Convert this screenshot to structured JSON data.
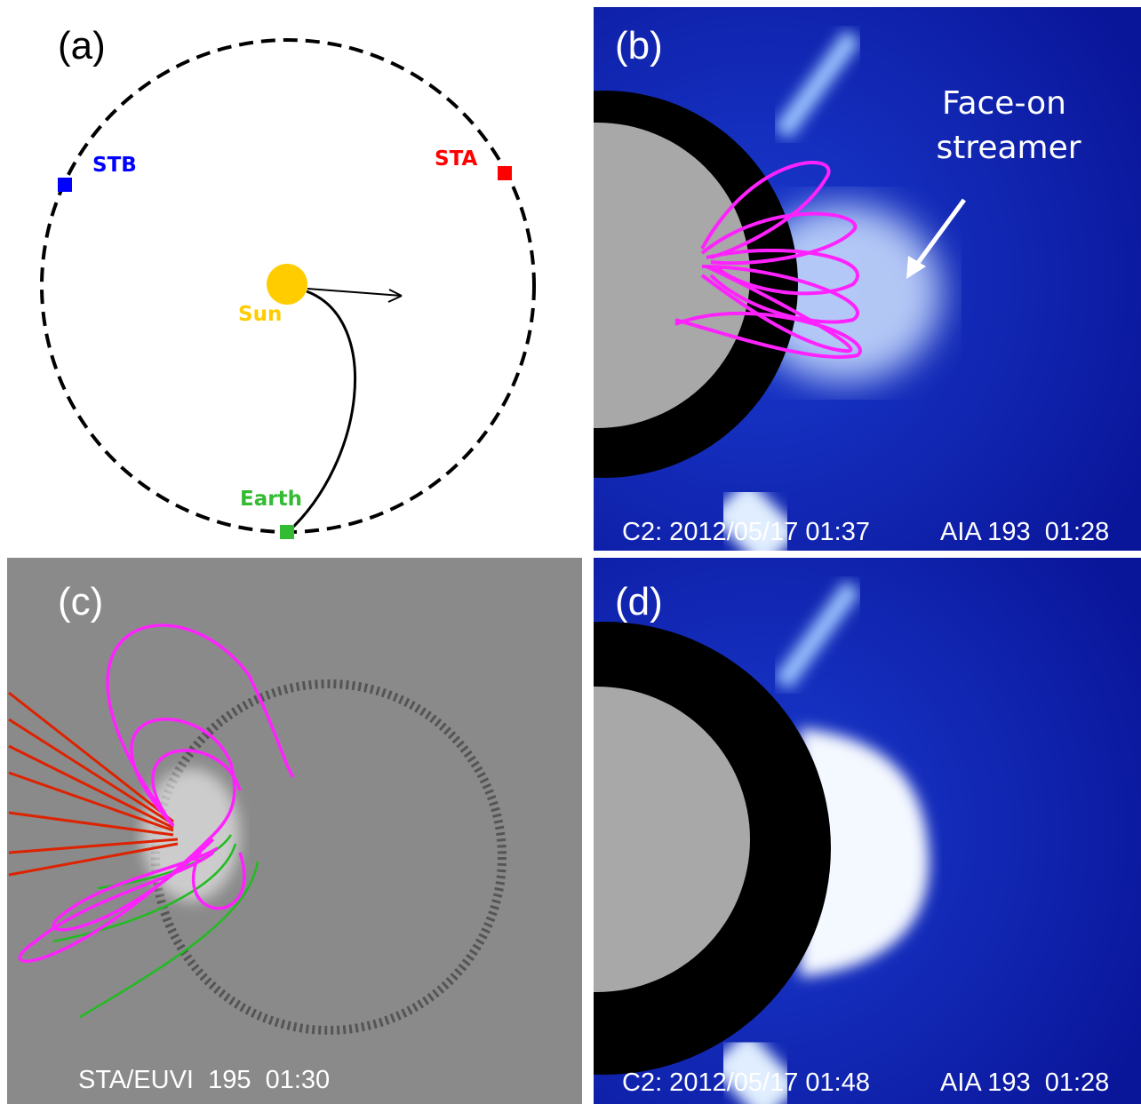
{
  "panels": [
    {
      "label": "(a)",
      "markers": {
        "stb": "STB",
        "sta": "STA",
        "sun": "Sun",
        "earth": "Earth"
      }
    },
    {
      "label": "(b)",
      "annotation": [
        "Face-on",
        "streamer"
      ],
      "caption": [
        "C2: 2012/05/17 01:37",
        "AIA 193  01:28"
      ]
    },
    {
      "label": "(c)",
      "caption": [
        "STA/EUVI  195  01:30"
      ]
    },
    {
      "label": "(d)",
      "caption": [
        "C2: 2012/05/17 01:48",
        "AIA 193  01:28"
      ]
    }
  ]
}
